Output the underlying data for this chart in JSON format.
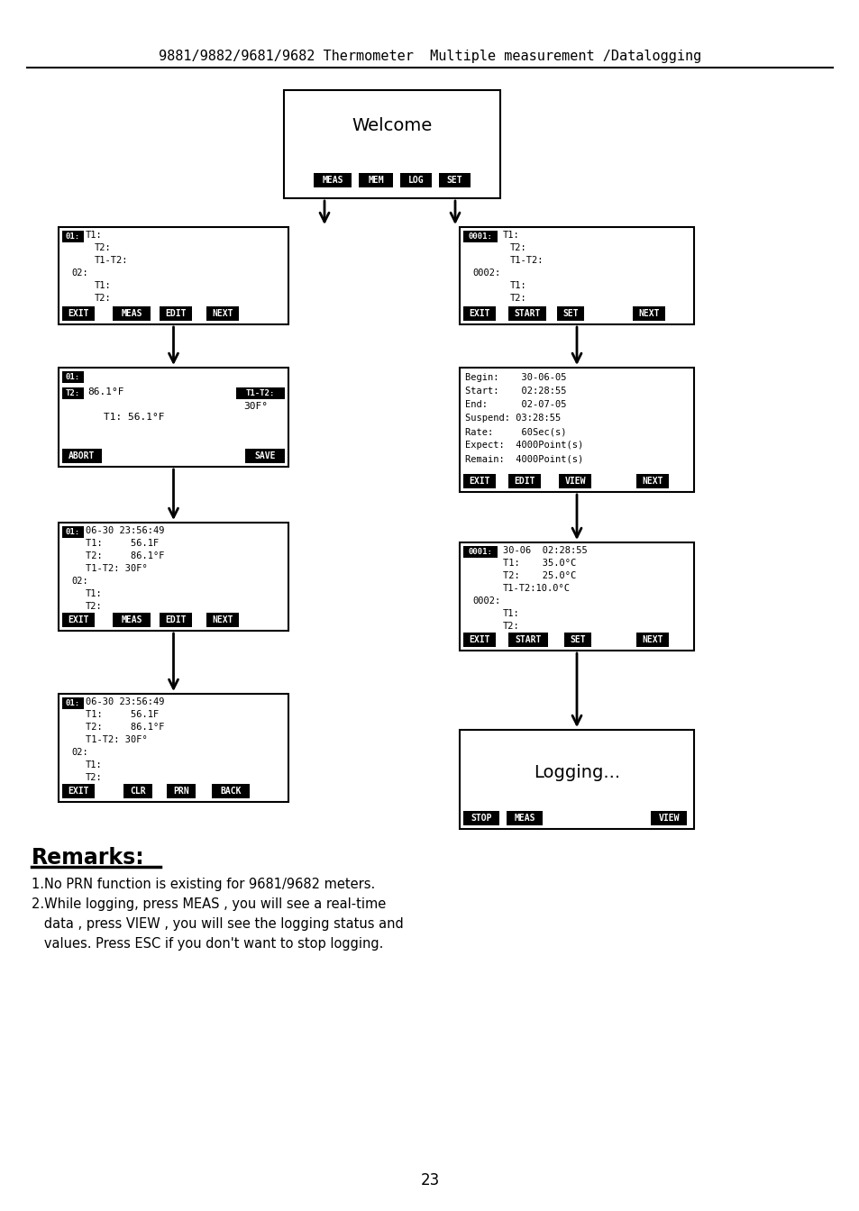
{
  "title": "9881/9882/9681/9682 Thermometer  Multiple measurement /Datalogging",
  "bg_color": "#ffffff",
  "page_number": "23",
  "remarks_title": "Remarks:",
  "remarks_lines": [
    "1.No PRN function is existing for 9681/9682 meters.",
    "2.While logging, press MEAS , you will see a real-time",
    "   data , press VIEW , you will see the logging status and",
    "   values. Press ESC if you don't want to stop logging."
  ],
  "welcome_text": "Welcome",
  "welcome_buttons": [
    "MEAS",
    "MEM",
    "LOG",
    "SET"
  ],
  "logging_text": "Logging...",
  "logging_buttons": [
    "STOP",
    "MEAS",
    "VIEW"
  ],
  "lb1_label": "01:",
  "lb1_items": [
    "T1:",
    "T2:",
    "T1-T2:",
    "02:",
    "T1:",
    "T2:"
  ],
  "lb1_buttons": [
    "EXIT",
    "MEAS",
    "EDIT",
    "NEXT"
  ],
  "rb1_label": "0001:",
  "rb1_items": [
    "T1:",
    "T2:",
    "T1-T2:",
    "0002:",
    "T1:",
    "T2:"
  ],
  "rb1_buttons": [
    "EXIT",
    "START",
    "SET",
    "NEXT"
  ],
  "lb2_label": "01:",
  "lb2_t2_label": "T2:",
  "lb2_t1t2_label": "T1-T2:",
  "lb2_t2_val": "86.1°F",
  "lb2_t1t2_val": "30F°",
  "lb2_t1_val": "T1: 56.1°F",
  "lb2_buttons": [
    "ABORT",
    "SAVE"
  ],
  "rb2_lines": [
    "Begin:    30-06-05",
    "Start:    02:28:55",
    "End:      02-07-05",
    "Suspend: 03:28:55",
    "Rate:     60Sec(s)",
    "Expect:  4000Point(s)",
    "Remain:  4000Point(s)"
  ],
  "rb2_buttons": [
    "EXIT",
    "EDIT",
    "VIEW",
    "NEXT"
  ],
  "lb3_label": "01:",
  "lb3_lines": [
    "06-30 23:56:49",
    "T1:     56.1F",
    "T2:     86.1°F",
    "T1-T2: 30F°",
    "02:",
    "T1:",
    "T2:"
  ],
  "lb3_buttons": [
    "EXIT",
    "MEAS",
    "EDIT",
    "NEXT"
  ],
  "rb3_label": "0001:",
  "rb3_lines": [
    "30-06  02:28:55",
    "T1:    35.0°C",
    "T2:    25.0°C",
    "T1-T2:10.0°C",
    "0002:",
    "T1:",
    "T2:"
  ],
  "rb3_buttons": [
    "EXIT",
    "START",
    "SET",
    "NEXT"
  ],
  "lb4_label": "01:",
  "lb4_lines": [
    "06-30 23:56:49",
    "T1:     56.1F",
    "T2:     86.1°F",
    "T1-T2: 30F°",
    "02:",
    "T1:",
    "T2:"
  ],
  "lb4_buttons": [
    "EXIT",
    "CLR",
    "PRN",
    "BACK"
  ]
}
